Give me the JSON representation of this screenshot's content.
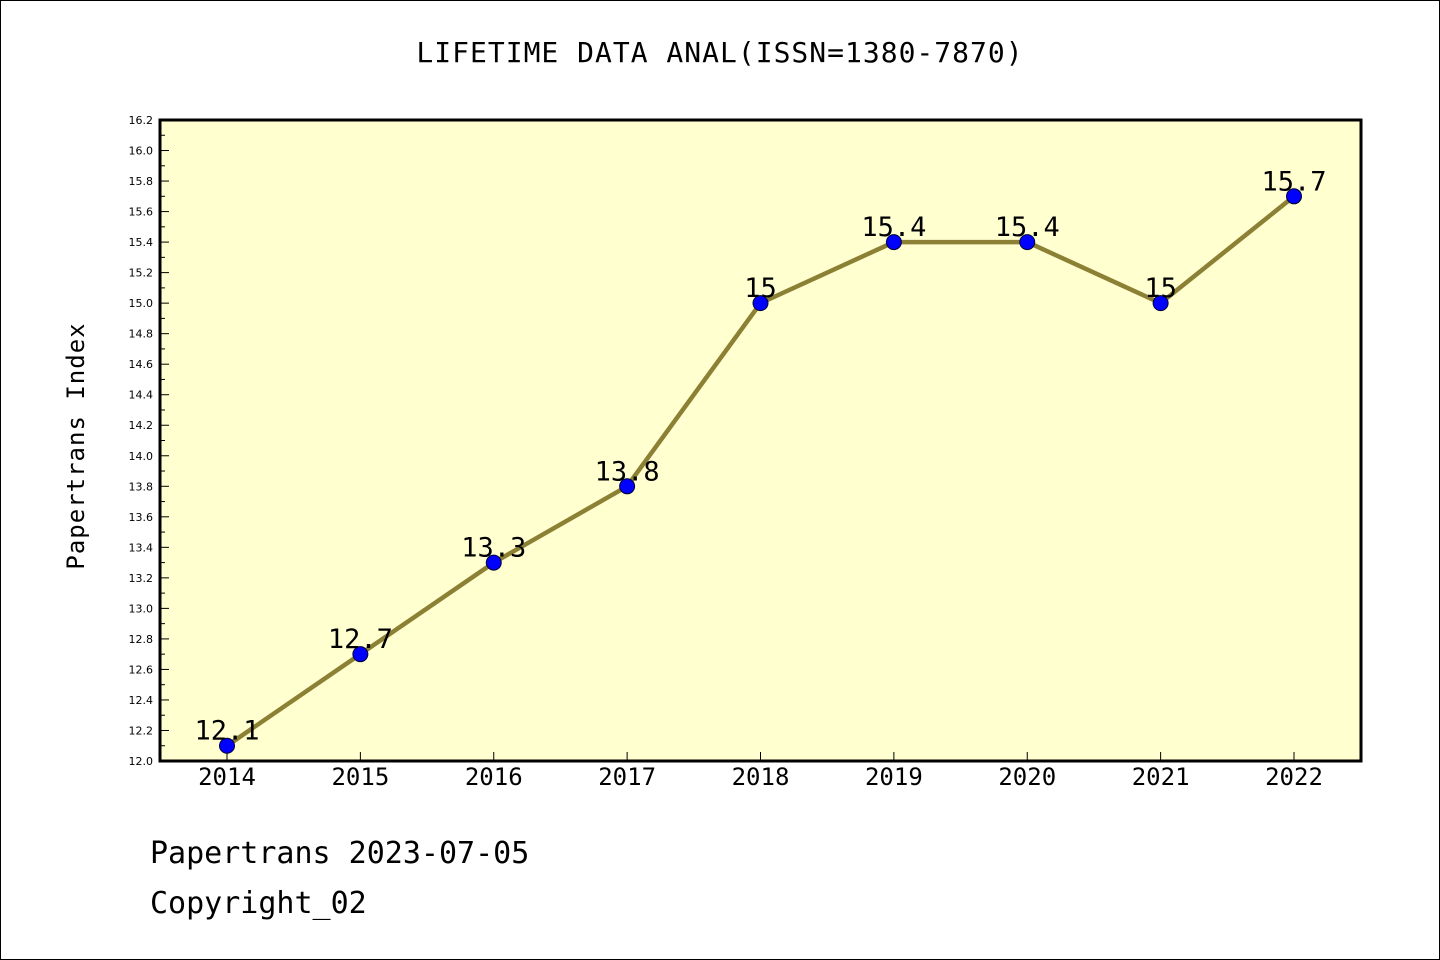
{
  "title": "LIFETIME DATA ANAL(ISSN=1380-7870)",
  "footer": {
    "line1": "Papertrans 2023-07-05",
    "line2": "Copyright_02"
  },
  "colors": {
    "plot_background": "#ffffd0",
    "line": "#8c8035",
    "marker": "#0000ff"
  },
  "chart_data": {
    "type": "line",
    "title": "LIFETIME DATA ANAL(ISSN=1380-7870)",
    "xlabel": "",
    "ylabel": "Papertrans Index",
    "categories": [
      "2014",
      "2015",
      "2016",
      "2017",
      "2018",
      "2019",
      "2020",
      "2021",
      "2022"
    ],
    "values": [
      12.1,
      12.7,
      13.3,
      13.8,
      15.0,
      15.4,
      15.4,
      15.0,
      15.7
    ],
    "data_labels": [
      "12.1",
      "12.7",
      "13.3",
      "13.8",
      "15",
      "15.4",
      "15.4",
      "15",
      "15.7"
    ],
    "ylim": [
      12.0,
      16.2
    ],
    "y_ticks": [
      "12.0",
      "12.2",
      "12.4",
      "12.6",
      "12.8",
      "13.0",
      "13.2",
      "13.4",
      "13.6",
      "13.8",
      "14.0",
      "14.2",
      "14.4",
      "14.6",
      "14.8",
      "15.0",
      "15.2",
      "15.4",
      "15.6",
      "15.8",
      "16.0",
      "16.2"
    ],
    "grid": false,
    "legend": "none"
  }
}
